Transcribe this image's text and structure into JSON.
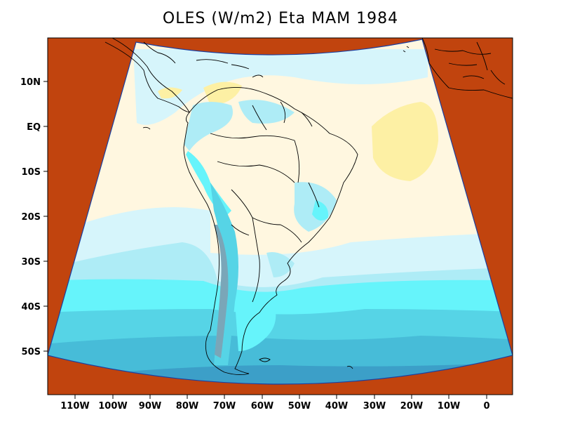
{
  "title": "OLES (W/m2) Eta MAM 1984",
  "lat_labels": [
    "10N",
    "EQ",
    "10S",
    "20S",
    "30S",
    "40S",
    "50S"
  ],
  "lon_labels": [
    "110W",
    "100W",
    "90W",
    "80W",
    "70W",
    "60W",
    "50W",
    "40W",
    "30W",
    "20W",
    "10W",
    "0"
  ],
  "colors": {
    "outside_domain": "#c1440e",
    "lightest": "#fff7e0",
    "yellow": "#fdf0a4",
    "pale_cyan": "#d6f5fb",
    "light_cyan": "#aeecf6",
    "cyan": "#66f4fb",
    "medium_cyan": "#56d4e6",
    "teal": "#47bcd8",
    "dark_teal": "#3c9fc8",
    "grey_blue": "#7aa6b8",
    "map_border": "#000000"
  }
}
